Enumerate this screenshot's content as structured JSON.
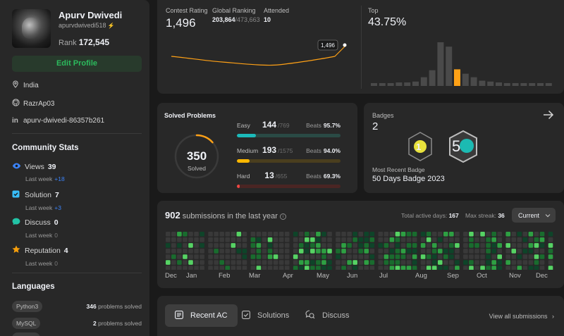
{
  "profile": {
    "name": "Apurv Dwivedi",
    "handle": "apurvdwivedi518",
    "rank_label": "Rank",
    "rank_value": "172,545",
    "edit_label": "Edit Profile",
    "location": "India",
    "github": "RazrAp03",
    "linkedin": "apurv-dwivedi-86357b261"
  },
  "community": {
    "title": "Community Stats",
    "items": [
      {
        "label": "Views",
        "value": "39",
        "sub_label": "Last week",
        "sub_value": "+18",
        "icon": "eye-icon",
        "color": "#3b82f6"
      },
      {
        "label": "Solution",
        "value": "7",
        "sub_label": "Last week",
        "sub_value": "+3",
        "icon": "check-square-icon",
        "color": "#38bdf8"
      },
      {
        "label": "Discuss",
        "value": "0",
        "sub_label": "Last week",
        "sub_value": "0",
        "icon": "chat-icon",
        "color": "#22c3a6"
      },
      {
        "label": "Reputation",
        "value": "4",
        "sub_label": "Last week",
        "sub_value": "0",
        "icon": "star-icon",
        "color": "#f59e0b"
      }
    ]
  },
  "languages": {
    "title": "Languages",
    "items": [
      {
        "name": "Python3",
        "count": "346",
        "suffix": "problems solved"
      },
      {
        "name": "MySQL",
        "count": "2",
        "suffix": "problems solved"
      }
    ]
  },
  "contest": {
    "rating_label": "Contest Rating",
    "rating_value": "1,496",
    "global_label": "Global Ranking",
    "global_value": "203,864",
    "global_total": "/473,663",
    "attended_label": "Attended",
    "attended_value": "10",
    "tooltip": "1,496",
    "top_label": "Top",
    "top_value": "43.75%",
    "histogram": [
      0.06,
      0.06,
      0.06,
      0.08,
      0.08,
      0.1,
      0.2,
      0.36,
      1.0,
      0.9,
      0.38,
      0.28,
      0.2,
      0.12,
      0.1,
      0.08,
      0.06,
      0.06,
      0.06,
      0.06,
      0.06,
      0.06
    ],
    "highlight_index": 10
  },
  "solved": {
    "title": "Solved Problems",
    "total": "350",
    "total_label": "Solved",
    "beats_label": "Beats",
    "difficulties": [
      {
        "name": "Easy",
        "count": "144",
        "total": "/769",
        "beats": "95.7%",
        "color": "#1cbaba",
        "track": "#2a4a45",
        "fraction": 0.187
      },
      {
        "name": "Medium",
        "count": "193",
        "total": "/1575",
        "beats": "94.0%",
        "color": "#ffb800",
        "track": "#4a3e1e",
        "fraction": 0.123
      },
      {
        "name": "Hard",
        "count": "13",
        "total": "/655",
        "beats": "69.3%",
        "color": "#ef4743",
        "track": "#4a2523",
        "fraction": 0.02
      }
    ]
  },
  "badges": {
    "title": "Badges",
    "count": "2",
    "recent_label": "Most Recent Badge",
    "recent_value": "50 Days Badge 2023"
  },
  "heatmap": {
    "count": "902",
    "suffix": "submissions in the last year",
    "active_label": "Total active days:",
    "active_value": "167",
    "streak_label": "Max streak:",
    "streak_value": "36",
    "select_value": "Current",
    "months": [
      "Dec",
      "Jan",
      "Feb",
      "Mar",
      "Apr",
      "May",
      "Jun",
      "Jul",
      "Aug",
      "Sep",
      "Oct",
      "Nov",
      "Dec"
    ]
  },
  "tabs": {
    "items": [
      {
        "label": "Recent AC",
        "icon": "list-icon"
      },
      {
        "label": "Solutions",
        "icon": "check-square-icon"
      },
      {
        "label": "Discuss",
        "icon": "discuss-icon"
      }
    ],
    "view_all": "View all submissions"
  }
}
